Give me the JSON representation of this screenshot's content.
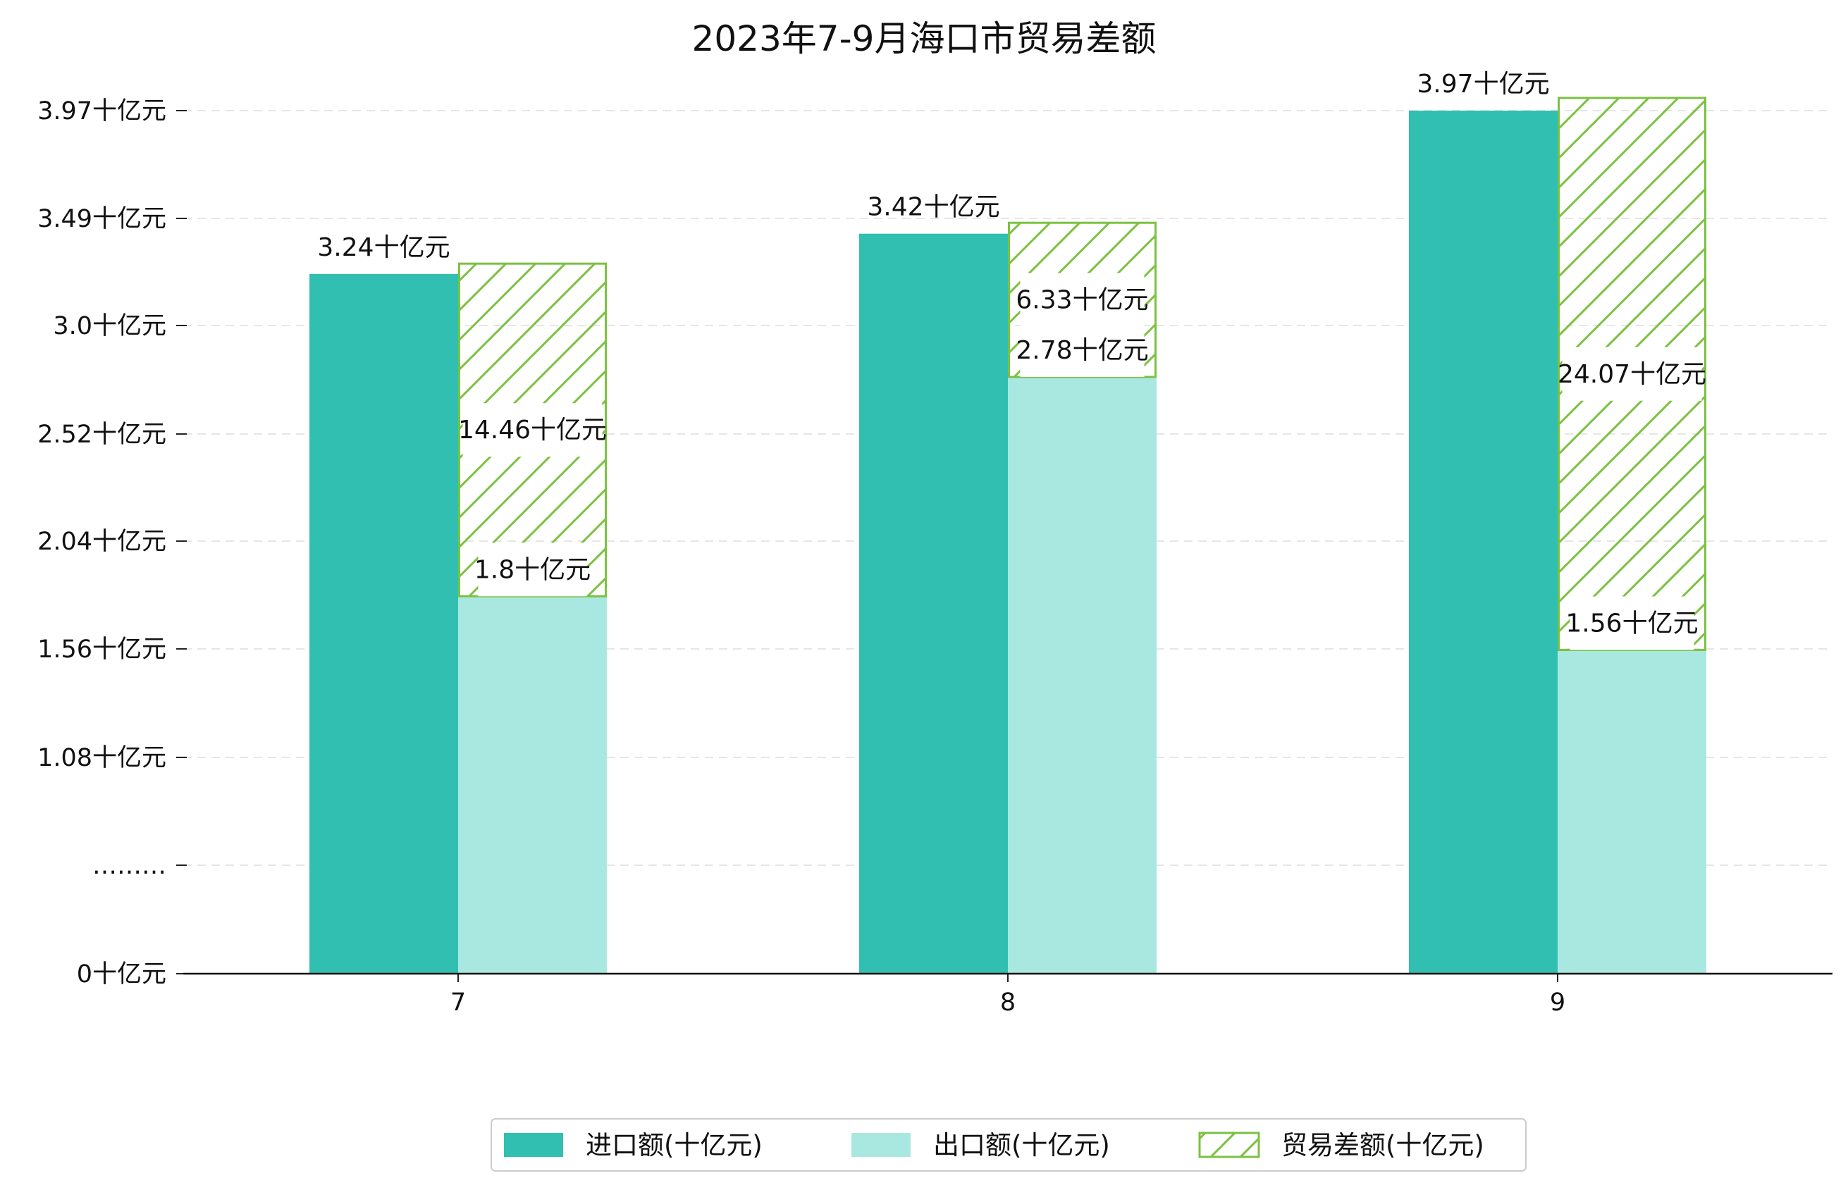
{
  "chart_data": {
    "type": "bar",
    "title": "2023年7-9月海口市贸易差额",
    "categories": [
      "7",
      "8",
      "9"
    ],
    "series": [
      {
        "name": "进口额(十亿元)",
        "values": [
          3.24,
          3.42,
          3.97
        ],
        "labels": [
          "3.24十亿元",
          "3.42十亿元",
          "3.97十亿元"
        ],
        "color": "#30BFB1"
      },
      {
        "name": "出口额(十亿元)",
        "values": [
          1.8,
          2.78,
          1.56
        ],
        "labels": [
          "1.8十亿元",
          "2.78十亿元",
          "1.56十亿元"
        ],
        "color": "#A9E8E1"
      },
      {
        "name": "贸易差额(十亿元)",
        "values": [
          14.46,
          6.33,
          24.07
        ],
        "labels": [
          "14.46十亿元",
          "6.33十亿元",
          "24.07十亿元"
        ],
        "color": "#7CC142",
        "hatched": true
      }
    ],
    "y_ticks": [
      "0十亿元",
      "………",
      "1.08十亿元",
      "1.56十亿元",
      "2.04十亿元",
      "2.52十亿元",
      "3.0十亿元",
      "3.49十亿元",
      "3.97十亿元"
    ],
    "y_scale": "broken axis, linear from 1.08 to 3.97",
    "grid": "horizontal dashed",
    "legend_position": "bottom-center",
    "xlabel": "",
    "ylabel": ""
  }
}
